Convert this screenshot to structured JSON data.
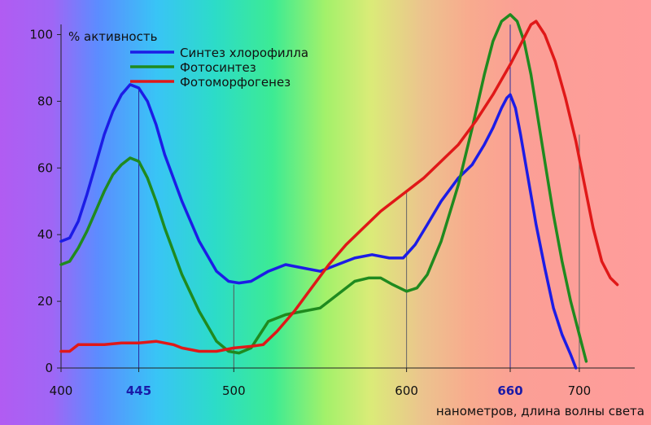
{
  "chart_data": {
    "type": "line",
    "ylabel": "% активность",
    "xlabel": "нанометров, длина волны света",
    "xlim": [
      400,
      725
    ],
    "ylim": [
      0,
      105
    ],
    "x_ticks": [
      {
        "value": 400,
        "label": "400",
        "highlight": false
      },
      {
        "value": 445,
        "label": "445",
        "highlight": true
      },
      {
        "value": 500,
        "label": "500",
        "highlight": false
      },
      {
        "value": 600,
        "label": "600",
        "highlight": false
      },
      {
        "value": 660,
        "label": "660",
        "highlight": true
      },
      {
        "value": 700,
        "label": "700",
        "highlight": false
      }
    ],
    "y_ticks": [
      {
        "value": 0,
        "label": "0"
      },
      {
        "value": 20,
        "label": "20"
      },
      {
        "value": 40,
        "label": "40"
      },
      {
        "value": 60,
        "label": "60"
      },
      {
        "value": 80,
        "label": "80"
      },
      {
        "value": 100,
        "label": "100"
      }
    ],
    "reference_lines": [
      {
        "x": 445,
        "top": 84,
        "color": "#2a2aa0"
      },
      {
        "x": 500,
        "top": 25,
        "color": "#555555"
      },
      {
        "x": 600,
        "top": 53,
        "color": "#666666"
      },
      {
        "x": 660,
        "top": 103,
        "color": "#2a2aa0"
      },
      {
        "x": 700,
        "top": 70,
        "color": "#666666"
      }
    ],
    "series": [
      {
        "name": "Синтез хлорофилла",
        "color": "#1c1ce6",
        "points": [
          [
            400,
            38
          ],
          [
            405,
            39
          ],
          [
            410,
            44
          ],
          [
            415,
            52
          ],
          [
            420,
            61
          ],
          [
            425,
            70
          ],
          [
            430,
            77
          ],
          [
            435,
            82
          ],
          [
            440,
            85
          ],
          [
            445,
            84
          ],
          [
            450,
            80
          ],
          [
            455,
            73
          ],
          [
            460,
            64
          ],
          [
            470,
            50
          ],
          [
            480,
            38
          ],
          [
            490,
            29
          ],
          [
            497,
            26
          ],
          [
            503,
            25.5
          ],
          [
            510,
            26
          ],
          [
            520,
            29
          ],
          [
            530,
            31
          ],
          [
            540,
            30
          ],
          [
            550,
            29
          ],
          [
            560,
            31
          ],
          [
            570,
            33
          ],
          [
            580,
            34
          ],
          [
            590,
            33
          ],
          [
            598,
            33
          ],
          [
            605,
            37
          ],
          [
            612,
            43
          ],
          [
            620,
            50
          ],
          [
            630,
            57
          ],
          [
            638,
            61
          ],
          [
            645,
            67
          ],
          [
            650,
            72
          ],
          [
            655,
            78
          ],
          [
            658,
            81
          ],
          [
            660,
            82
          ],
          [
            663,
            78
          ],
          [
            666,
            70
          ],
          [
            670,
            58
          ],
          [
            675,
            43
          ],
          [
            680,
            30
          ],
          [
            685,
            18
          ],
          [
            690,
            10
          ],
          [
            695,
            4
          ],
          [
            698,
            0
          ]
        ]
      },
      {
        "name": "Фотосинтез",
        "color": "#1f8a1f",
        "points": [
          [
            400,
            31
          ],
          [
            405,
            32
          ],
          [
            410,
            36
          ],
          [
            415,
            41
          ],
          [
            420,
            47
          ],
          [
            425,
            53
          ],
          [
            430,
            58
          ],
          [
            435,
            61
          ],
          [
            440,
            63
          ],
          [
            445,
            62
          ],
          [
            450,
            57
          ],
          [
            455,
            50
          ],
          [
            460,
            42
          ],
          [
            470,
            28
          ],
          [
            480,
            17
          ],
          [
            490,
            8
          ],
          [
            497,
            5
          ],
          [
            503,
            4.5
          ],
          [
            510,
            6
          ],
          [
            515,
            10
          ],
          [
            520,
            14
          ],
          [
            530,
            16
          ],
          [
            540,
            17
          ],
          [
            550,
            18
          ],
          [
            560,
            22
          ],
          [
            570,
            26
          ],
          [
            578,
            27
          ],
          [
            585,
            27
          ],
          [
            592,
            25
          ],
          [
            600,
            23
          ],
          [
            606,
            24
          ],
          [
            612,
            28
          ],
          [
            620,
            38
          ],
          [
            630,
            55
          ],
          [
            638,
            72
          ],
          [
            645,
            88
          ],
          [
            650,
            98
          ],
          [
            655,
            104
          ],
          [
            660,
            106
          ],
          [
            664,
            104
          ],
          [
            668,
            98
          ],
          [
            672,
            88
          ],
          [
            676,
            75
          ],
          [
            680,
            62
          ],
          [
            685,
            46
          ],
          [
            690,
            32
          ],
          [
            695,
            20
          ],
          [
            700,
            10
          ],
          [
            704,
            2
          ]
        ]
      },
      {
        "name": "Фотоморфогенез",
        "color": "#e01818",
        "points": [
          [
            400,
            5
          ],
          [
            405,
            5
          ],
          [
            410,
            7
          ],
          [
            415,
            7
          ],
          [
            425,
            7
          ],
          [
            435,
            7.5
          ],
          [
            445,
            7.5
          ],
          [
            455,
            8
          ],
          [
            465,
            7
          ],
          [
            470,
            6
          ],
          [
            480,
            5
          ],
          [
            490,
            5
          ],
          [
            500,
            6
          ],
          [
            510,
            6.5
          ],
          [
            517,
            7
          ],
          [
            525,
            11
          ],
          [
            535,
            17
          ],
          [
            545,
            24
          ],
          [
            555,
            31
          ],
          [
            565,
            37
          ],
          [
            575,
            42
          ],
          [
            585,
            47
          ],
          [
            595,
            51
          ],
          [
            600,
            53
          ],
          [
            610,
            57
          ],
          [
            620,
            62
          ],
          [
            630,
            67
          ],
          [
            640,
            74
          ],
          [
            650,
            82
          ],
          [
            660,
            91
          ],
          [
            668,
            99
          ],
          [
            672,
            103
          ],
          [
            675,
            104
          ],
          [
            680,
            100
          ],
          [
            686,
            92
          ],
          [
            692,
            81
          ],
          [
            698,
            68
          ],
          [
            703,
            55
          ],
          [
            708,
            42
          ],
          [
            713,
            32
          ],
          [
            718,
            27
          ],
          [
            722,
            25
          ]
        ]
      }
    ]
  }
}
